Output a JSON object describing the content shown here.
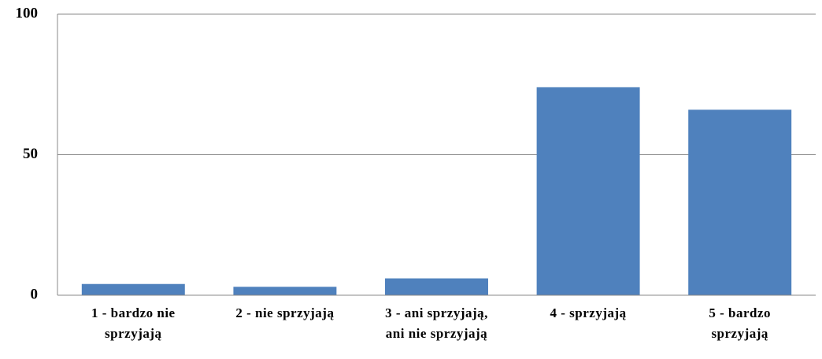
{
  "chart_data": {
    "type": "bar",
    "categories": [
      "1 - bardzo nie sprzyjają",
      "2 - nie sprzyjają",
      "3 - ani sprzyjają, ani nie sprzyjają",
      "4 - sprzyjają",
      "5 - bardzo sprzyjają"
    ],
    "values": [
      4,
      3,
      6,
      74,
      66
    ],
    "color": "#4f81bd",
    "ylim": [
      0,
      100
    ],
    "yticks": [
      0,
      50,
      100
    ],
    "grid": true
  }
}
